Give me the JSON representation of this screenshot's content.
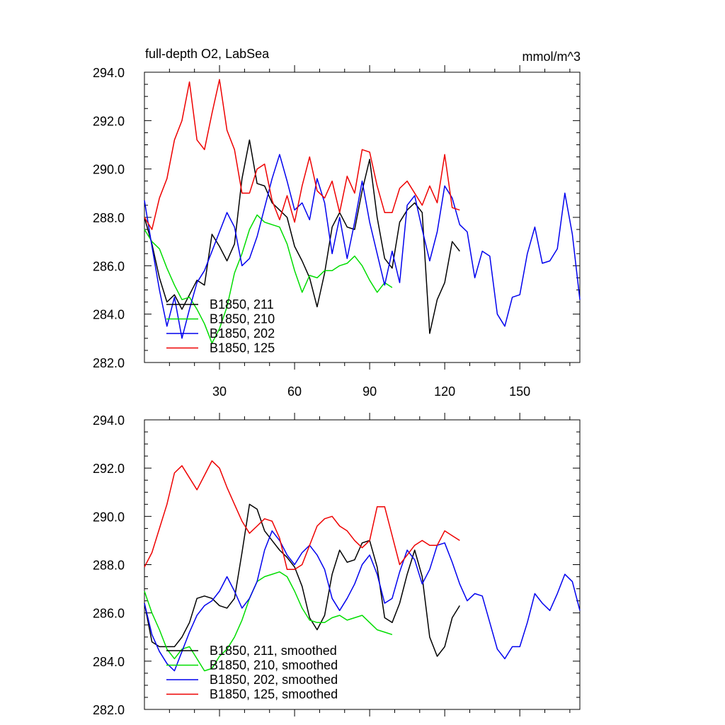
{
  "chart_data": [
    {
      "type": "line",
      "title": "full-depth O2, LabSea",
      "units": "mmol/m^3",
      "xlabel": "",
      "ylabel": "",
      "xlim": [
        0,
        174
      ],
      "ylim": [
        282,
        294
      ],
      "xticks": [
        30,
        60,
        90,
        120,
        150
      ],
      "xtick_labels": [
        "30",
        "60",
        "90",
        "120",
        "150"
      ],
      "yticks": [
        282,
        284,
        286,
        288,
        290,
        292,
        294
      ],
      "ytick_labels": [
        "282.0",
        "284.0",
        "286.0",
        "288.0",
        "290.0",
        "292.0",
        "294.0"
      ],
      "legend_position": "bottom-left",
      "series": [
        {
          "name": "B1850, 211",
          "color": "#000000",
          "x": [
            0,
            3,
            6,
            9,
            12,
            15,
            18,
            21,
            24,
            27,
            30,
            33,
            36,
            39,
            42,
            45,
            48,
            51,
            54,
            57,
            60,
            63,
            66,
            69,
            72,
            75,
            78,
            81,
            84,
            87,
            90,
            93,
            96,
            99,
            102,
            105,
            108,
            111,
            114,
            117,
            120,
            123,
            126
          ],
          "y": [
            288.0,
            286.9,
            285.5,
            284.5,
            284.8,
            284.2,
            284.8,
            285.4,
            285.2,
            287.3,
            286.8,
            286.2,
            286.9,
            289.6,
            291.2,
            289.4,
            289.3,
            288.6,
            288.3,
            288.0,
            286.8,
            286.2,
            285.5,
            284.3,
            285.7,
            287.6,
            288.2,
            287.6,
            287.5,
            289.1,
            290.4,
            288.0,
            286.3,
            285.9,
            287.8,
            288.3,
            288.6,
            288.2,
            283.2,
            284.6,
            285.3,
            287.0,
            286.6
          ]
        },
        {
          "name": "B1850, 210",
          "color": "#00dd00",
          "x": [
            0,
            3,
            6,
            9,
            12,
            15,
            18,
            21,
            24,
            27,
            30,
            33,
            36,
            39,
            42,
            45,
            48,
            51,
            54,
            57,
            60,
            63,
            66,
            69,
            72,
            75,
            78,
            81,
            84,
            87,
            90,
            93,
            96,
            99
          ],
          "y": [
            287.5,
            287.0,
            286.7,
            285.9,
            285.2,
            284.6,
            284.7,
            284.2,
            283.6,
            282.8,
            283.4,
            284.3,
            285.7,
            286.5,
            287.5,
            288.1,
            287.8,
            287.7,
            287.6,
            286.9,
            285.8,
            284.9,
            285.6,
            285.5,
            285.8,
            285.8,
            286.0,
            286.1,
            286.4,
            286.0,
            285.4,
            284.9,
            285.3,
            285.1
          ]
        },
        {
          "name": "B1850, 202",
          "color": "#0000ee",
          "x": [
            0,
            3,
            6,
            9,
            12,
            15,
            18,
            21,
            24,
            27,
            30,
            33,
            36,
            39,
            42,
            45,
            48,
            51,
            54,
            57,
            60,
            63,
            66,
            69,
            72,
            75,
            78,
            81,
            84,
            87,
            90,
            93,
            96,
            99,
            102,
            105,
            108,
            111,
            114,
            117,
            120,
            123,
            126,
            129,
            132,
            135,
            138,
            141,
            144,
            147,
            150,
            153,
            156,
            159,
            162,
            165,
            168,
            171,
            174
          ],
          "y": [
            288.7,
            286.8,
            285.0,
            283.5,
            284.7,
            283.0,
            284.2,
            285.3,
            285.8,
            286.6,
            287.4,
            288.2,
            287.6,
            286.0,
            286.3,
            287.2,
            288.4,
            289.6,
            290.6,
            289.5,
            288.3,
            288.6,
            287.9,
            289.6,
            288.6,
            286.5,
            288.0,
            286.3,
            287.8,
            289.5,
            287.8,
            286.5,
            285.2,
            286.6,
            285.3,
            288.5,
            288.9,
            287.5,
            286.2,
            287.4,
            289.3,
            288.8,
            287.7,
            287.4,
            285.5,
            286.6,
            286.4,
            284.0,
            283.5,
            284.7,
            284.8,
            286.5,
            287.6,
            286.1,
            286.2,
            286.7,
            289.0,
            287.3,
            284.6
          ]
        },
        {
          "name": "B1850, 125",
          "color": "#ee0000",
          "x": [
            0,
            3,
            6,
            9,
            12,
            15,
            18,
            21,
            24,
            27,
            30,
            33,
            36,
            39,
            42,
            45,
            48,
            51,
            54,
            57,
            60,
            63,
            66,
            69,
            72,
            75,
            78,
            81,
            84,
            87,
            90,
            93,
            96,
            99,
            102,
            105,
            108,
            111,
            114,
            117,
            120,
            123,
            126
          ],
          "y": [
            288.0,
            287.5,
            288.8,
            289.6,
            291.2,
            292.0,
            293.6,
            291.2,
            290.8,
            292.3,
            293.7,
            291.6,
            290.8,
            289.0,
            289.0,
            290.0,
            290.2,
            288.7,
            287.9,
            288.9,
            287.8,
            289.3,
            290.5,
            289.1,
            288.8,
            289.5,
            288.2,
            289.7,
            289.0,
            290.8,
            290.7,
            289.3,
            288.2,
            288.2,
            289.2,
            289.5,
            289.0,
            288.5,
            289.3,
            288.6,
            290.6,
            288.4,
            288.3
          ]
        }
      ]
    },
    {
      "type": "line",
      "title": "",
      "xlabel": "",
      "ylabel": "",
      "xlim": [
        0,
        174
      ],
      "ylim": [
        282,
        294
      ],
      "yticks": [
        282,
        284,
        286,
        288,
        290,
        292,
        294
      ],
      "ytick_labels": [
        "282.0",
        "284.0",
        "286.0",
        "288.0",
        "290.0",
        "292.0",
        "294.0"
      ],
      "legend_position": "bottom-left",
      "series": [
        {
          "name": "B1850, 211, smoothed",
          "color": "#000000",
          "x": [
            0,
            3,
            6,
            9,
            12,
            15,
            18,
            21,
            24,
            27,
            30,
            33,
            36,
            39,
            42,
            45,
            48,
            51,
            54,
            57,
            60,
            63,
            66,
            69,
            72,
            75,
            78,
            81,
            84,
            87,
            90,
            93,
            96,
            99,
            102,
            105,
            108,
            111,
            114,
            117,
            120,
            123,
            126
          ],
          "y": [
            286.4,
            284.8,
            284.6,
            284.6,
            284.6,
            285.0,
            285.6,
            286.6,
            286.7,
            286.6,
            286.3,
            286.2,
            286.6,
            288.5,
            290.5,
            290.3,
            289.4,
            289.0,
            288.6,
            288.3,
            287.9,
            287.1,
            285.8,
            285.3,
            285.9,
            287.6,
            288.6,
            288.1,
            288.2,
            288.9,
            289.0,
            287.9,
            285.8,
            285.6,
            286.4,
            287.6,
            288.6,
            287.5,
            285.0,
            284.2,
            284.6,
            285.8,
            286.3
          ]
        },
        {
          "name": "B1850, 210, smoothed",
          "color": "#00dd00",
          "x": [
            0,
            3,
            6,
            9,
            12,
            15,
            18,
            21,
            24,
            27,
            30,
            33,
            36,
            39,
            42,
            45,
            48,
            51,
            54,
            57,
            60,
            63,
            66,
            69,
            72,
            75,
            78,
            81,
            84,
            87,
            90,
            93,
            96,
            99
          ],
          "y": [
            286.9,
            286.0,
            285.3,
            284.5,
            284.1,
            284.5,
            284.6,
            284.1,
            283.6,
            283.7,
            284.2,
            284.5,
            285.0,
            285.7,
            286.6,
            287.3,
            287.5,
            287.6,
            287.7,
            287.5,
            286.9,
            286.2,
            285.7,
            285.6,
            285.6,
            285.8,
            285.9,
            285.7,
            285.8,
            285.9,
            285.6,
            285.3,
            285.2,
            285.1
          ]
        },
        {
          "name": "B1850, 202, smoothed",
          "color": "#0000ee",
          "x": [
            0,
            3,
            6,
            9,
            12,
            15,
            18,
            21,
            24,
            27,
            30,
            33,
            36,
            39,
            42,
            45,
            48,
            51,
            54,
            57,
            60,
            63,
            66,
            69,
            72,
            75,
            78,
            81,
            84,
            87,
            90,
            93,
            96,
            99,
            102,
            105,
            108,
            111,
            114,
            117,
            120,
            123,
            126,
            129,
            132,
            135,
            138,
            141,
            144,
            147,
            150,
            153,
            156,
            159,
            162,
            165,
            168,
            171,
            174
          ],
          "y": [
            286.4,
            285.1,
            284.4,
            283.9,
            283.6,
            284.4,
            285.2,
            285.9,
            286.3,
            286.5,
            286.9,
            287.5,
            286.9,
            286.2,
            286.6,
            287.3,
            288.6,
            289.4,
            289.0,
            288.4,
            288.0,
            288.5,
            288.8,
            288.4,
            287.8,
            286.6,
            286.1,
            286.6,
            287.2,
            288.0,
            288.4,
            287.6,
            286.4,
            286.6,
            287.7,
            288.6,
            288.2,
            287.2,
            287.8,
            288.8,
            288.9,
            288.1,
            287.2,
            286.5,
            286.8,
            286.7,
            285.6,
            284.5,
            284.1,
            284.6,
            284.6,
            285.6,
            286.8,
            286.4,
            286.1,
            286.8,
            287.6,
            287.3,
            286.1
          ]
        },
        {
          "name": "B1850, 125, smoothed",
          "color": "#ee0000",
          "x": [
            0,
            3,
            6,
            9,
            12,
            15,
            18,
            21,
            24,
            27,
            30,
            33,
            36,
            39,
            42,
            45,
            48,
            51,
            54,
            57,
            60,
            63,
            66,
            69,
            72,
            75,
            78,
            81,
            84,
            87,
            90,
            93,
            96,
            99,
            102,
            105,
            108,
            111,
            114,
            117,
            120,
            123,
            126
          ],
          "y": [
            287.9,
            288.5,
            289.5,
            290.5,
            291.8,
            292.1,
            291.6,
            291.1,
            291.7,
            292.3,
            292.0,
            291.2,
            290.5,
            289.8,
            289.3,
            289.6,
            289.9,
            289.8,
            289.1,
            287.8,
            287.8,
            288.0,
            288.8,
            289.6,
            289.9,
            290.0,
            289.6,
            289.4,
            289.0,
            288.7,
            289.0,
            290.4,
            290.4,
            289.2,
            288.0,
            288.4,
            288.8,
            289.0,
            288.8,
            288.8,
            289.4,
            289.2,
            289.0
          ]
        }
      ]
    }
  ]
}
